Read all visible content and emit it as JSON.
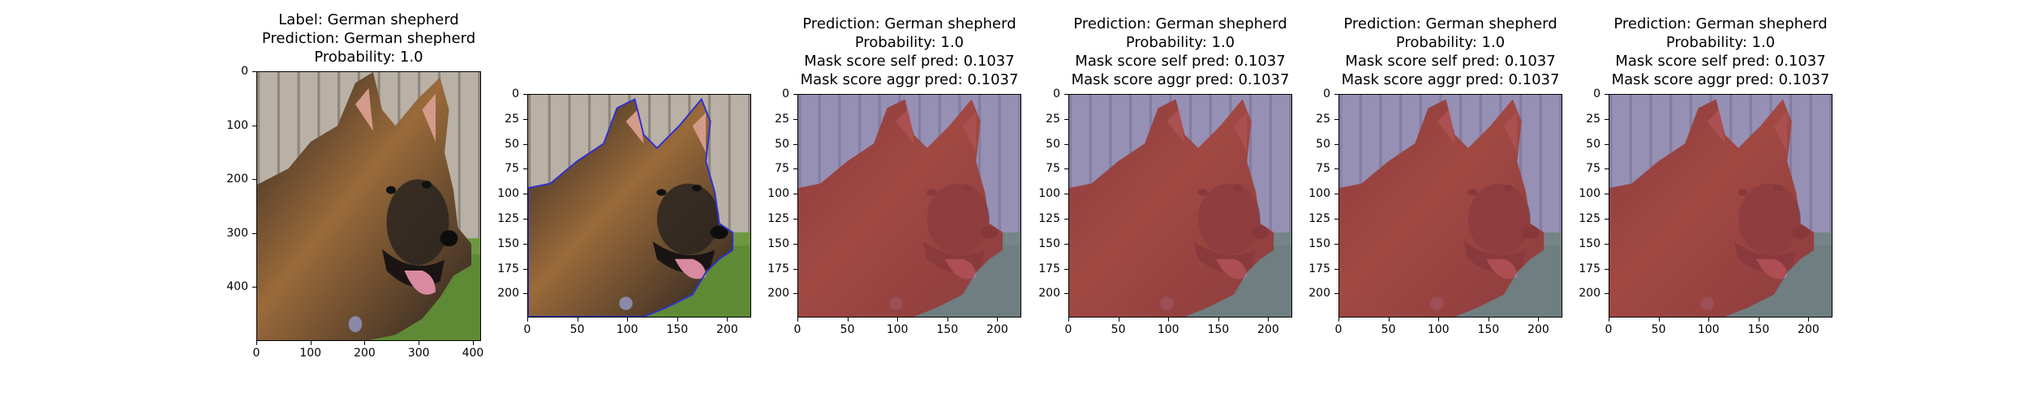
{
  "figure": {
    "panels": [
      {
        "title_lines": [
          "Label: German shepherd",
          "Prediction: German shepherd",
          "Probability: 1.0"
        ],
        "image_kind": "original",
        "x_ticks": [
          "0",
          "100",
          "200",
          "300",
          "400"
        ],
        "y_ticks": [
          "0",
          "100",
          "200",
          "300",
          "400"
        ],
        "x_range": [
          0,
          415
        ],
        "y_range": [
          0,
          500
        ]
      },
      {
        "title_lines": [],
        "image_kind": "contour",
        "x_ticks": [
          "0",
          "50",
          "100",
          "150",
          "200"
        ],
        "y_ticks": [
          "0",
          "25",
          "50",
          "75",
          "100",
          "125",
          "150",
          "175",
          "200"
        ],
        "x_range": [
          0,
          224
        ],
        "y_range": [
          0,
          224
        ]
      },
      {
        "title_lines": [
          "Prediction: German shepherd",
          "Probability: 1.0",
          "Mask score self pred: 0.1037",
          "Mask score aggr pred: 0.1037"
        ],
        "image_kind": "overlay",
        "x_ticks": [
          "0",
          "50",
          "100",
          "150",
          "200"
        ],
        "y_ticks": [
          "0",
          "25",
          "50",
          "75",
          "100",
          "125",
          "150",
          "175",
          "200"
        ],
        "x_range": [
          0,
          224
        ],
        "y_range": [
          0,
          224
        ]
      },
      {
        "title_lines": [
          "Prediction: German shepherd",
          "Probability: 1.0",
          "Mask score self pred: 0.1037",
          "Mask score aggr pred: 0.1037"
        ],
        "image_kind": "overlay",
        "x_ticks": [
          "0",
          "50",
          "100",
          "150",
          "200"
        ],
        "y_ticks": [
          "0",
          "25",
          "50",
          "75",
          "100",
          "125",
          "150",
          "175",
          "200"
        ],
        "x_range": [
          0,
          224
        ],
        "y_range": [
          0,
          224
        ]
      },
      {
        "title_lines": [
          "Prediction: German shepherd",
          "Probability: 1.0",
          "Mask score self pred: 0.1037",
          "Mask score aggr pred: 0.1037"
        ],
        "image_kind": "overlay",
        "x_ticks": [
          "0",
          "50",
          "100",
          "150",
          "200"
        ],
        "y_ticks": [
          "0",
          "25",
          "50",
          "75",
          "100",
          "125",
          "150",
          "175",
          "200"
        ],
        "x_range": [
          0,
          224
        ],
        "y_range": [
          0,
          224
        ]
      },
      {
        "title_lines": [
          "Prediction: German shepherd",
          "Probability: 1.0",
          "Mask score self pred: 0.1037",
          "Mask score aggr pred: 0.1037"
        ],
        "image_kind": "overlay",
        "x_ticks": [
          "0",
          "50",
          "100",
          "150",
          "200"
        ],
        "y_ticks": [
          "0",
          "25",
          "50",
          "75",
          "100",
          "125",
          "150",
          "175",
          "200"
        ],
        "x_range": [
          0,
          224
        ],
        "y_range": [
          0,
          224
        ]
      }
    ],
    "colors": {
      "fence": "#b9b1a6",
      "grass": "#5f8a35",
      "fur_dark": "#2a2420",
      "fur_tan": "#9a6a3a",
      "tongue": "#d98aa0",
      "mask_red": "#b0301c",
      "mask_blue": "#7a74c0",
      "contour": "#2f2fd0"
    }
  }
}
